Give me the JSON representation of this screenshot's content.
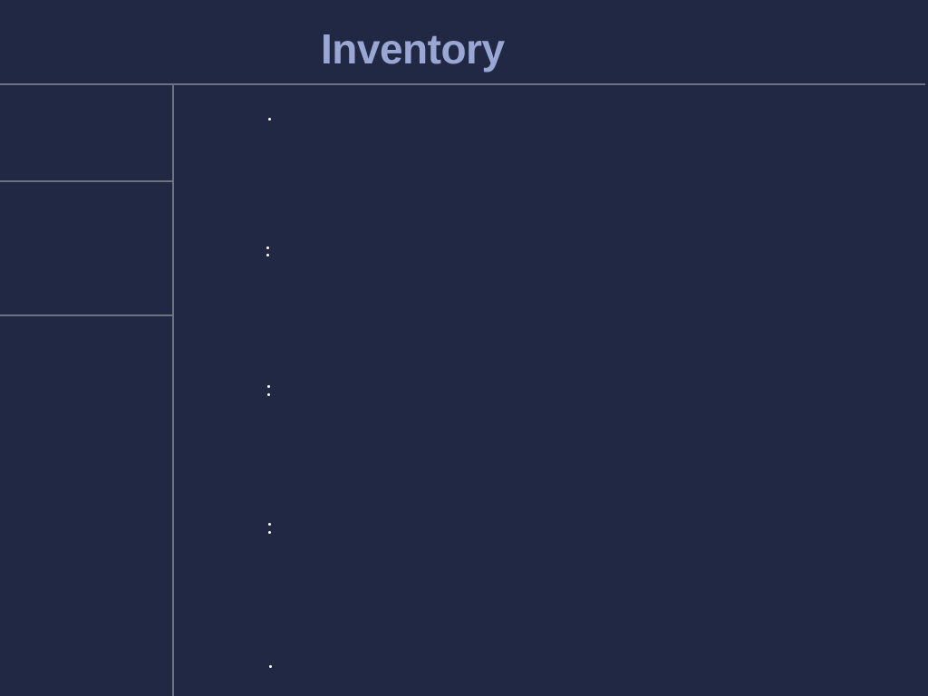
{
  "app": {
    "title": "Inventory"
  },
  "colors": {
    "background": "#212843",
    "title": "#9aa6d4",
    "divider": "#6d7280",
    "marker": "#ffffff"
  },
  "sidebar": {
    "panels": [
      {
        "id": "panel-1"
      },
      {
        "id": "panel-2"
      },
      {
        "id": "panel-3"
      }
    ]
  },
  "main": {
    "items": [
      {
        "marker_icon": "single-dot-icon"
      },
      {
        "marker_icon": "double-dot-icon"
      },
      {
        "marker_icon": "double-dot-icon"
      },
      {
        "marker_icon": "double-dot-icon"
      },
      {
        "marker_icon": "single-dot-icon"
      }
    ]
  }
}
